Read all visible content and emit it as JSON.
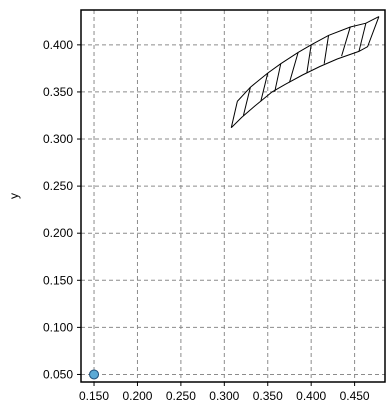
{
  "chart_data": {
    "type": "line",
    "title": "",
    "xlabel": "",
    "ylabel": "y",
    "xlim": [
      0.135,
      0.485
    ],
    "ylim": [
      0.042,
      0.437
    ],
    "x_ticks": [
      "0.150",
      "0.200",
      "0.250",
      "0.300",
      "0.350",
      "0.400",
      "0.450"
    ],
    "y_ticks": [
      "0.050",
      "0.100",
      "0.150",
      "0.200",
      "0.250",
      "0.300",
      "0.350",
      "0.400"
    ],
    "grid": true,
    "legend": "none",
    "series": [
      {
        "points": [
          [
            0.315,
            0.34
          ],
          [
            0.33,
            0.355
          ],
          [
            0.35,
            0.37
          ],
          [
            0.365,
            0.38
          ],
          [
            0.385,
            0.392
          ],
          [
            0.4,
            0.4
          ],
          [
            0.42,
            0.41
          ],
          [
            0.445,
            0.419
          ],
          [
            0.463,
            0.423
          ],
          [
            0.478,
            0.43
          ]
        ]
      },
      {
        "points": [
          [
            0.308,
            0.312
          ],
          [
            0.32,
            0.323
          ],
          [
            0.335,
            0.335
          ],
          [
            0.355,
            0.35
          ],
          [
            0.37,
            0.358
          ],
          [
            0.39,
            0.368
          ],
          [
            0.41,
            0.377
          ],
          [
            0.43,
            0.385
          ],
          [
            0.455,
            0.393
          ],
          [
            0.465,
            0.398
          ],
          [
            0.478,
            0.43
          ]
        ]
      }
    ],
    "rungs": [
      [
        [
          0.315,
          0.34
        ],
        [
          0.308,
          0.312
        ]
      ],
      [
        [
          0.33,
          0.355
        ],
        [
          0.322,
          0.325
        ]
      ],
      [
        [
          0.35,
          0.37
        ],
        [
          0.342,
          0.34
        ]
      ],
      [
        [
          0.365,
          0.38
        ],
        [
          0.358,
          0.35
        ]
      ],
      [
        [
          0.385,
          0.392
        ],
        [
          0.375,
          0.36
        ]
      ],
      [
        [
          0.4,
          0.4
        ],
        [
          0.395,
          0.37
        ]
      ],
      [
        [
          0.42,
          0.41
        ],
        [
          0.415,
          0.38
        ]
      ],
      [
        [
          0.445,
          0.419
        ],
        [
          0.435,
          0.388
        ]
      ],
      [
        [
          0.463,
          0.423
        ],
        [
          0.455,
          0.393
        ]
      ]
    ],
    "markers": [
      {
        "x": 0.15,
        "y": 0.05,
        "color": "#5aa9d6"
      }
    ]
  }
}
